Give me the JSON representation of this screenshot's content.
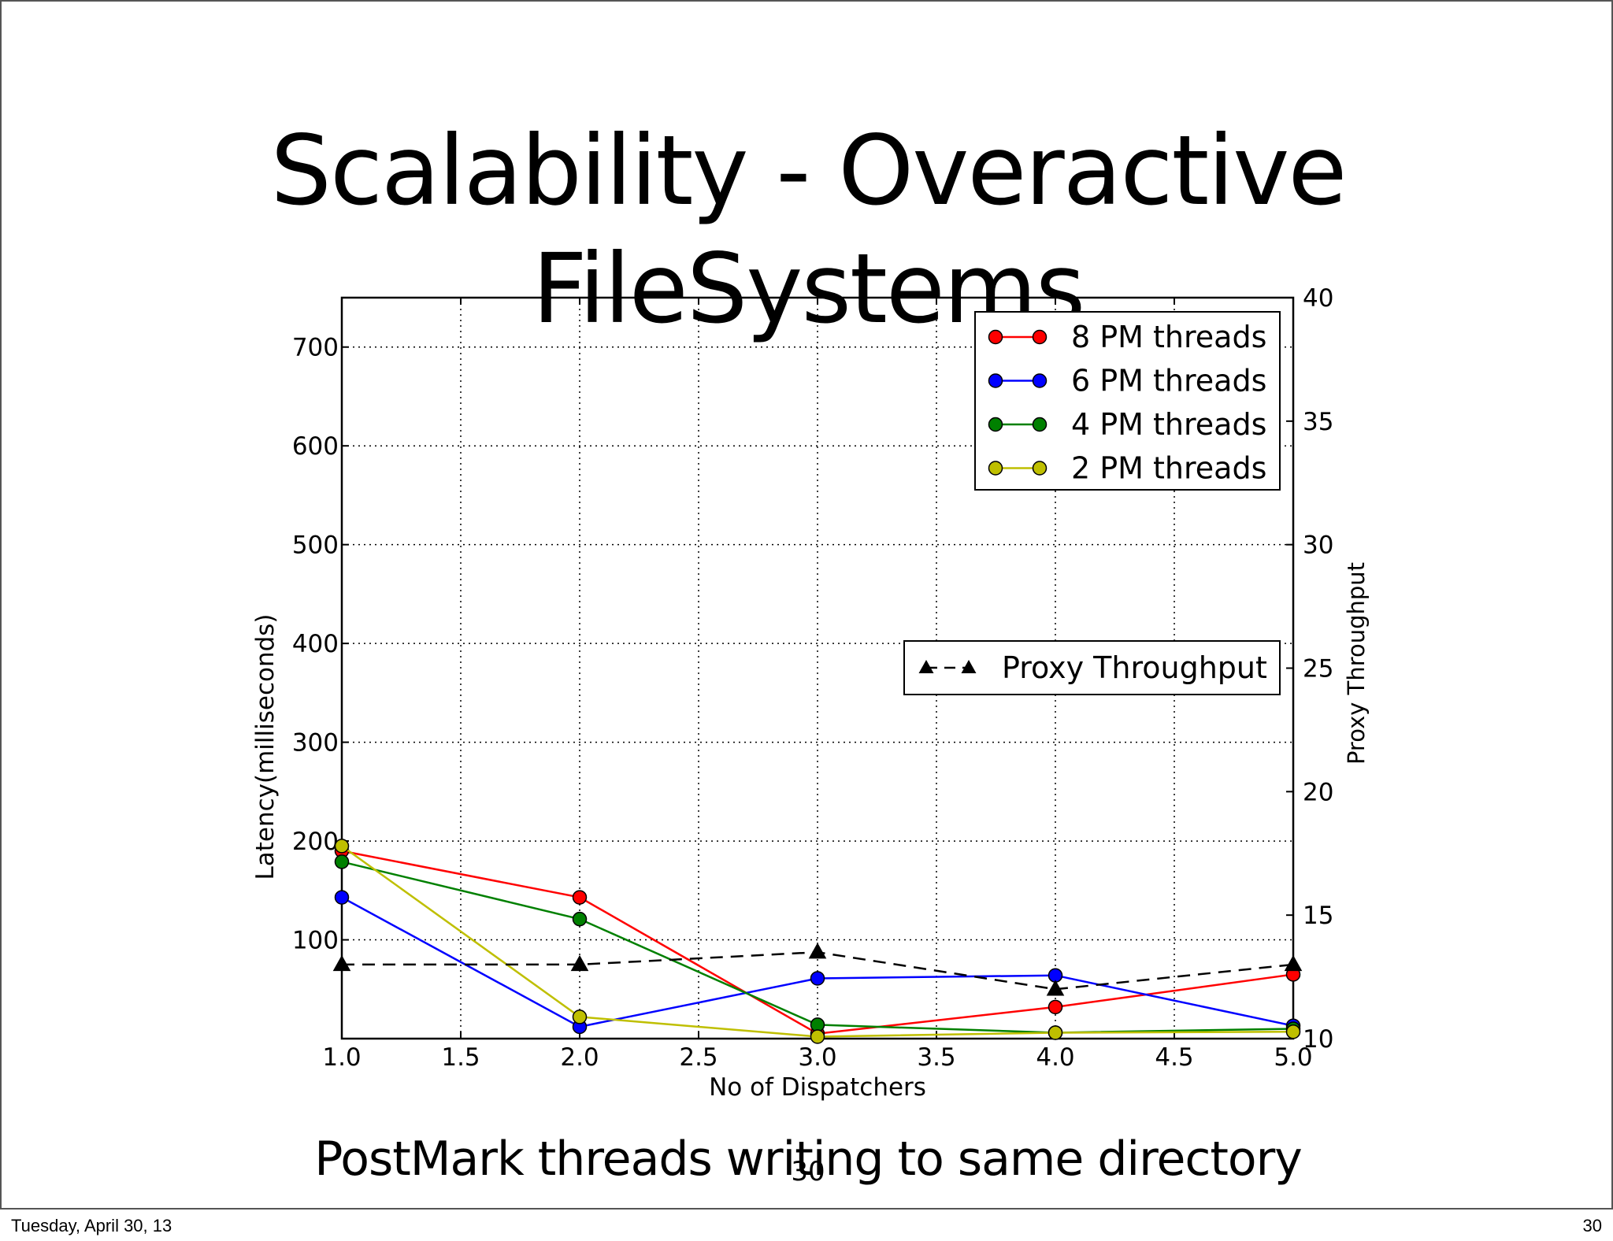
{
  "slide": {
    "title": "Scalability - Overactive FileSystems",
    "caption": "PostMark threads writing to same directory",
    "slide_number_center": "30"
  },
  "footer": {
    "date": "Tuesday, April 30, 13",
    "page_number": "30"
  },
  "colors": {
    "8pm": "#ff0000",
    "6pm": "#0000ff",
    "4pm": "#008000",
    "2pm": "#bfbf00",
    "proxy": "#000000"
  },
  "chart_data": {
    "type": "line",
    "title": "",
    "xlabel": "No of Dispatchers",
    "ylabel": "Latency(milliseconds)",
    "y2label": "Proxy Throughput",
    "x": [
      1.0,
      2.0,
      3.0,
      4.0,
      5.0
    ],
    "xlim": [
      1.0,
      5.0
    ],
    "ylim": [
      0,
      750
    ],
    "y2lim": [
      10,
      40
    ],
    "xticks": [
      1.0,
      1.5,
      2.0,
      2.5,
      3.0,
      3.5,
      4.0,
      4.5,
      5.0
    ],
    "xtick_labels": [
      "1.0",
      "1.5",
      "2.0",
      "2.5",
      "3.0",
      "3.5",
      "4.0",
      "4.5",
      "5.0"
    ],
    "yticks": [
      100,
      200,
      300,
      400,
      500,
      600,
      700
    ],
    "ytick_labels": [
      "100",
      "200",
      "300",
      "400",
      "500",
      "600",
      "700"
    ],
    "y2ticks": [
      10,
      15,
      20,
      25,
      30,
      35,
      40
    ],
    "y2tick_labels": [
      "10",
      "15",
      "20",
      "25",
      "30",
      "35",
      "40"
    ],
    "grid": true,
    "legend_placement": "top-right",
    "legend2_placement": "center-right",
    "series": [
      {
        "name": "8 PM threads",
        "color_key": "8pm",
        "marker": "circle",
        "values": [
          190,
          143,
          5,
          32,
          65
        ]
      },
      {
        "name": "6 PM threads",
        "color_key": "6pm",
        "marker": "circle",
        "values": [
          143,
          12,
          61,
          64,
          13
        ]
      },
      {
        "name": "4 PM threads",
        "color_key": "4pm",
        "marker": "circle",
        "values": [
          179,
          121,
          14,
          6,
          10
        ]
      },
      {
        "name": "2 PM threads",
        "color_key": "2pm",
        "marker": "circle",
        "values": [
          195,
          22,
          2,
          6,
          7
        ]
      },
      {
        "name": "Proxy Throughput",
        "color_key": "proxy",
        "marker": "triangle",
        "dashed": true,
        "axis": "right",
        "values": [
          13.0,
          13.0,
          13.5,
          12.0,
          13.0
        ]
      }
    ]
  }
}
